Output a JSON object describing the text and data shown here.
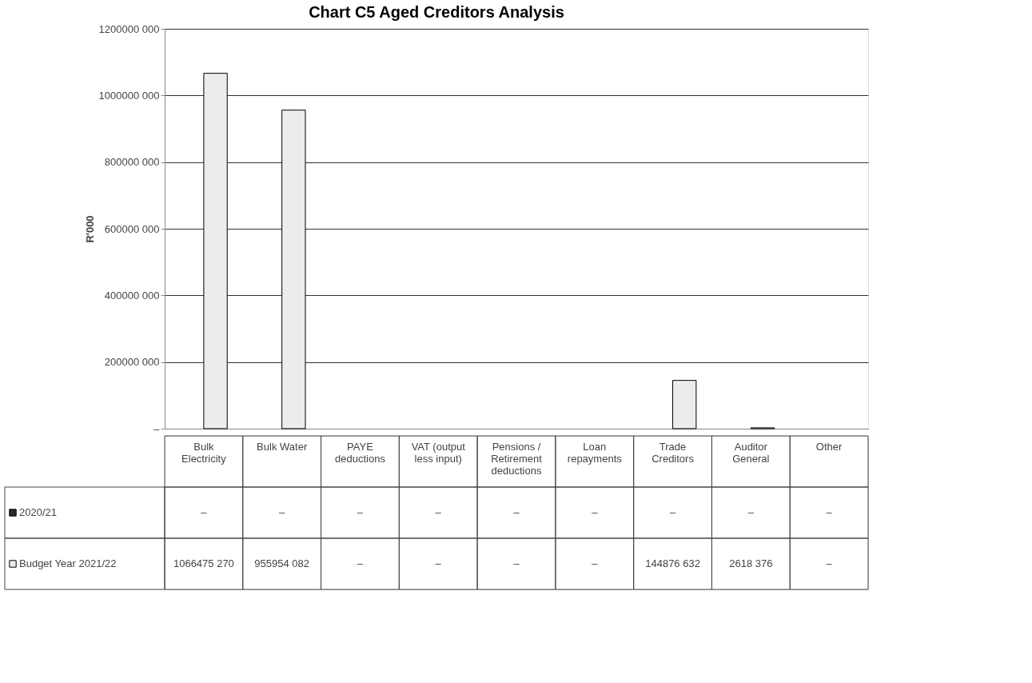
{
  "chart_data": {
    "type": "bar",
    "title": "Chart C5 Aged Creditors Analysis",
    "ylabel": "R'000",
    "categories": [
      "Bulk Electricity",
      "Bulk Water",
      "PAYE deductions",
      "VAT (output less input)",
      "Pensions / Retirement deductions",
      "Loan repayments",
      "Trade Creditors",
      "Auditor General",
      "Other"
    ],
    "series": [
      {
        "name": "2020/21",
        "color": "#2b2b2b",
        "values": [
          0,
          0,
          0,
          0,
          0,
          0,
          0,
          0,
          0
        ],
        "value_labels": [
          "–",
          "–",
          "–",
          "–",
          "–",
          "–",
          "–",
          "–",
          "–"
        ]
      },
      {
        "name": "Budget Year 2021/22",
        "color": "#ececec",
        "values": [
          1066475270,
          955954082,
          0,
          0,
          0,
          0,
          144876632,
          2618376,
          0
        ],
        "value_labels": [
          "1066475 270",
          "955954 082",
          "–",
          "–",
          "–",
          "–",
          "144876 632",
          "2618 376",
          "–"
        ]
      }
    ],
    "ylim": [
      0,
      1200000000
    ],
    "yticks": [
      {
        "value": 0,
        "label": "–"
      },
      {
        "value": 200000000,
        "label": "200000 000"
      },
      {
        "value": 400000000,
        "label": "400000 000"
      },
      {
        "value": 600000000,
        "label": "600000 000"
      },
      {
        "value": 800000000,
        "label": "800000 000"
      },
      {
        "value": 1000000000,
        "label": "1000000 000"
      },
      {
        "value": 1200000000,
        "label": "1200000 000"
      }
    ],
    "grid": "y",
    "legend": "bottom"
  }
}
